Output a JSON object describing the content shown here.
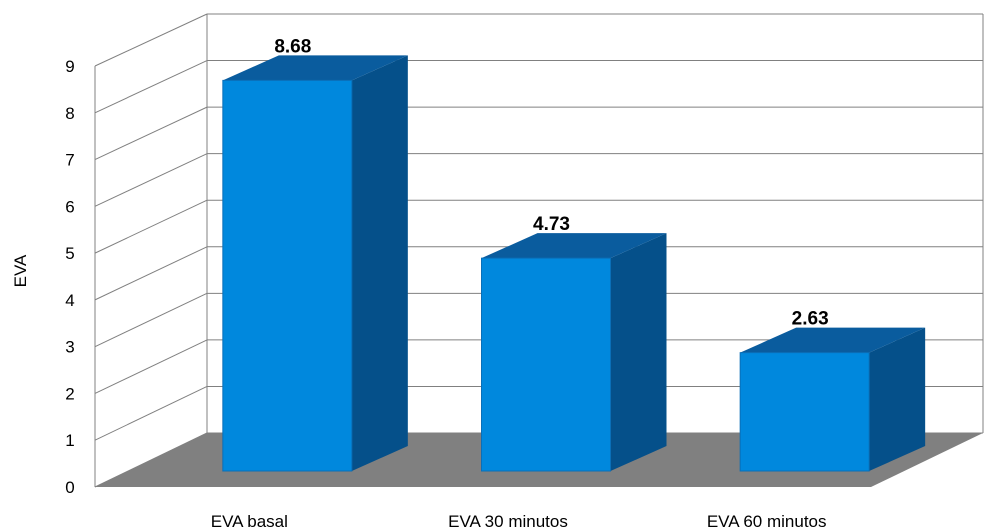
{
  "chart_data": {
    "type": "bar",
    "categories": [
      "EVA basal",
      "EVA 30 minutos",
      "EVA 60 minutos"
    ],
    "values": [
      8.68,
      4.73,
      2.63
    ],
    "data_labels": [
      "8.68",
      "4.73",
      "2.63"
    ],
    "title": "",
    "xlabel": "",
    "ylabel": "EVA",
    "ylim": [
      0,
      9
    ],
    "yticks": [
      "0",
      "1",
      "2",
      "3",
      "4",
      "5",
      "6",
      "7",
      "8",
      "9"
    ],
    "grid": true,
    "legend": "none",
    "style": "3d",
    "colors": {
      "bar_front": "#0088dd",
      "bar_top": "#0a5c9e",
      "bar_side": "#05508a",
      "floor": "#808080",
      "grid": "#808080"
    }
  }
}
